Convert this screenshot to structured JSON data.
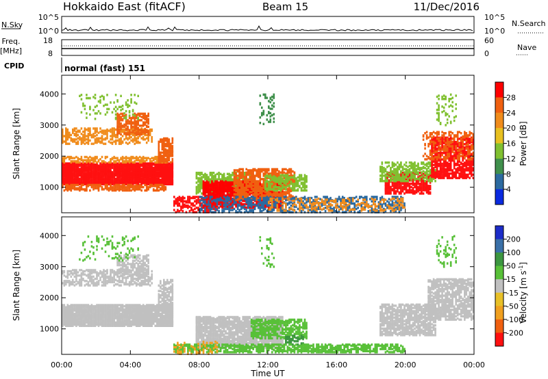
{
  "header": {
    "radar": "Hokkaido East (fitACF)",
    "beam": "Beam 15",
    "date": "11/Dec/2016"
  },
  "panels": {
    "nsky": {
      "label": "N.Sky",
      "ticks": [
        "10^5",
        "10^0"
      ],
      "right_label": "N.Search",
      "right_ticks": [
        "10^5",
        "10^0"
      ]
    },
    "freq": {
      "label_line1": "Freq.",
      "label_line2": "[MHz]",
      "ticks": [
        "18",
        "8"
      ],
      "right_label": "Nave",
      "right_ticks": [
        "60",
        "0"
      ]
    },
    "cpid": {
      "label": "CPID",
      "value": "normal (fast) 151"
    }
  },
  "chart_data": [
    {
      "type": "heatmap",
      "name": "power",
      "ylabel": "Slant Range [km]",
      "xlabel": "",
      "yticks": [
        1000,
        2000,
        3000,
        4000
      ],
      "ylim": [
        180,
        4600
      ],
      "x_range_hours": [
        0,
        24
      ],
      "colorbar": {
        "label": "Power [dB]",
        "ticks": [
          "28",
          "24",
          "20",
          "16",
          "12",
          "8",
          "4"
        ],
        "colors": [
          "#ff0000",
          "#f06010",
          "#f08c1c",
          "#e8c020",
          "#80c030",
          "#40904c",
          "#2c6aa0",
          "#0a2ae0"
        ]
      },
      "regions": [
        {
          "t0": 0.0,
          "t1": 6.4,
          "r0": 1100,
          "r1": 1800,
          "color": "#ff1010",
          "density": 0.9
        },
        {
          "t0": 0.0,
          "t1": 6.0,
          "r0": 900,
          "r1": 1100,
          "color": "#f06010",
          "density": 0.6
        },
        {
          "t0": 0.0,
          "t1": 6.0,
          "r0": 1800,
          "r1": 2000,
          "color": "#f08c1c",
          "density": 0.5
        },
        {
          "t0": 0.0,
          "t1": 5.2,
          "r0": 2400,
          "r1": 2900,
          "color": "#f08c1c",
          "density": 0.45
        },
        {
          "t0": 3.2,
          "t1": 5.0,
          "r0": 2700,
          "r1": 3400,
          "color": "#f06010",
          "density": 0.45
        },
        {
          "t0": 1.0,
          "t1": 4.5,
          "r0": 3200,
          "r1": 4000,
          "color": "#80c030",
          "density": 0.12
        },
        {
          "t0": 5.6,
          "t1": 6.4,
          "r0": 1800,
          "r1": 2600,
          "color": "#f06010",
          "density": 0.6
        },
        {
          "t0": 6.5,
          "t1": 9.0,
          "r0": 200,
          "r1": 700,
          "color": "#ff1010",
          "density": 0.4
        },
        {
          "t0": 7.8,
          "t1": 11.0,
          "r0": 800,
          "r1": 1500,
          "color": "#80c030",
          "density": 0.55
        },
        {
          "t0": 8.2,
          "t1": 12.8,
          "r0": 350,
          "r1": 1200,
          "color": "#ff0000",
          "density": 0.75
        },
        {
          "t0": 10.0,
          "t1": 13.5,
          "r0": 600,
          "r1": 1600,
          "color": "#f06010",
          "density": 0.55
        },
        {
          "t0": 11.8,
          "t1": 14.2,
          "r0": 900,
          "r1": 1400,
          "color": "#80c030",
          "density": 0.5
        },
        {
          "t0": 8.0,
          "t1": 20.0,
          "r0": 200,
          "r1": 700,
          "color": "#2c6aa0",
          "density": 0.35
        },
        {
          "t0": 12.0,
          "t1": 20.0,
          "r0": 250,
          "r1": 650,
          "color": "#f08c1c",
          "density": 0.25
        },
        {
          "t0": 18.8,
          "t1": 21.5,
          "r0": 800,
          "r1": 1500,
          "color": "#ff1010",
          "density": 0.6
        },
        {
          "t0": 18.5,
          "t1": 21.8,
          "r0": 1200,
          "r1": 1800,
          "color": "#80c030",
          "density": 0.45
        },
        {
          "t0": 21.5,
          "t1": 24.0,
          "r0": 1300,
          "r1": 2600,
          "color": "#ff1010",
          "density": 0.6
        },
        {
          "t0": 21.0,
          "t1": 24.0,
          "r0": 1900,
          "r1": 2800,
          "color": "#f06010",
          "density": 0.3
        },
        {
          "t0": 11.5,
          "t1": 12.3,
          "r0": 3000,
          "r1": 4000,
          "color": "#40904c",
          "density": 0.15
        },
        {
          "t0": 21.8,
          "t1": 23.0,
          "r0": 3000,
          "r1": 4000,
          "color": "#80c030",
          "density": 0.15
        }
      ]
    },
    {
      "type": "heatmap",
      "name": "velocity",
      "ylabel": "Slant Range [km]",
      "xlabel": "Time UT",
      "yticks": [
        1000,
        2000,
        3000,
        4000
      ],
      "ylim": [
        180,
        4600
      ],
      "xticks": [
        "00:00",
        "04:00",
        "08:00",
        "12:00",
        "16:00",
        "20:00",
        "00:00"
      ],
      "x_range_hours": [
        0,
        24
      ],
      "colorbar": {
        "label_main": "Velocity [m s",
        "label_sup": "-1",
        "label_end": "]",
        "ticks": [
          "200",
          "100",
          "50",
          "15",
          "-15",
          "-50",
          "-100",
          "-200"
        ],
        "colors": [
          "#1c2cc8",
          "#3a70a8",
          "#3c9640",
          "#58c038",
          "#c0c0c0",
          "#e8c028",
          "#f0a020",
          "#f06010",
          "#ff1010"
        ]
      },
      "regions": [
        {
          "t0": 0.0,
          "t1": 6.4,
          "r0": 1100,
          "r1": 1800,
          "color": "#c0c0c0",
          "density": 0.85
        },
        {
          "t0": 0.0,
          "t1": 5.2,
          "r0": 2400,
          "r1": 2900,
          "color": "#c0c0c0",
          "density": 0.45
        },
        {
          "t0": 3.2,
          "t1": 5.0,
          "r0": 2700,
          "r1": 3400,
          "color": "#c0c0c0",
          "density": 0.4
        },
        {
          "t0": 1.0,
          "t1": 4.5,
          "r0": 3200,
          "r1": 4000,
          "color": "#58c038",
          "density": 0.1
        },
        {
          "t0": 5.6,
          "t1": 6.4,
          "r0": 1800,
          "r1": 2600,
          "color": "#c0c0c0",
          "density": 0.5
        },
        {
          "t0": 7.8,
          "t1": 12.8,
          "r0": 400,
          "r1": 1400,
          "color": "#c0c0c0",
          "density": 0.75
        },
        {
          "t0": 11.0,
          "t1": 14.2,
          "r0": 700,
          "r1": 1300,
          "color": "#58c038",
          "density": 0.55
        },
        {
          "t0": 13.0,
          "t1": 14.0,
          "r0": 500,
          "r1": 800,
          "color": "#3c9640",
          "density": 0.45
        },
        {
          "t0": 6.5,
          "t1": 20.0,
          "r0": 250,
          "r1": 500,
          "color": "#58c038",
          "density": 0.55
        },
        {
          "t0": 6.5,
          "t1": 9.0,
          "r0": 200,
          "r1": 600,
          "color": "#f0a020",
          "density": 0.2
        },
        {
          "t0": 18.5,
          "t1": 21.8,
          "r0": 800,
          "r1": 1800,
          "color": "#c0c0c0",
          "density": 0.65
        },
        {
          "t0": 21.3,
          "t1": 24.0,
          "r0": 1300,
          "r1": 2600,
          "color": "#c0c0c0",
          "density": 0.6
        },
        {
          "t0": 11.5,
          "t1": 12.3,
          "r0": 3000,
          "r1": 4000,
          "color": "#58c038",
          "density": 0.12
        },
        {
          "t0": 21.8,
          "t1": 23.0,
          "r0": 3000,
          "r1": 4000,
          "color": "#58c038",
          "density": 0.12
        }
      ]
    }
  ]
}
